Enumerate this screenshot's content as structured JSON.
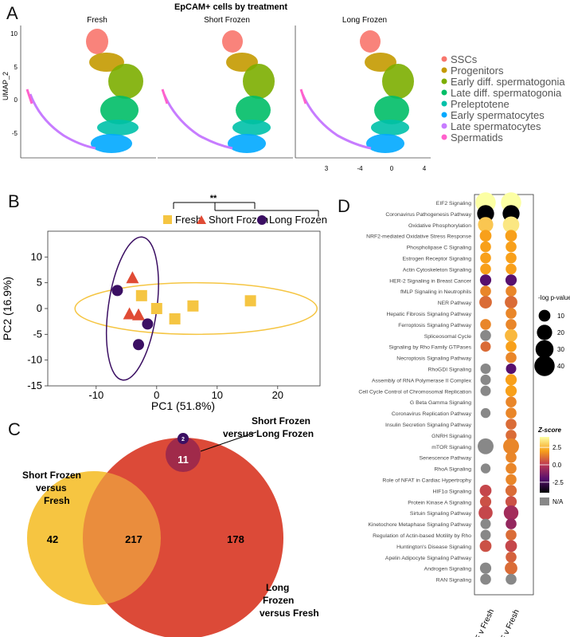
{
  "panels": {
    "a": "A",
    "b": "B",
    "c": "C",
    "d": "D"
  },
  "colors": {
    "ssc": "#f8766d",
    "prog": "#c49a00",
    "early_diff": "#7cae00",
    "late_diff": "#00be67",
    "preleptotene": "#00c1a9",
    "early_sperm": "#00a9ff",
    "late_sperm": "#c77cff",
    "spermatids": "#ff61cc",
    "fresh": "#f5c542",
    "short_frozen": "#e04b35",
    "long_frozen": "#3b0f63"
  },
  "chart_data": [
    {
      "id": "umap",
      "type": "scatter",
      "title": "EpCAM+ cells by treatment",
      "facets": [
        "Fresh",
        "Short Frozen",
        "Long Frozen"
      ],
      "ylabel": "UMAP_2",
      "y_ticks": [
        "10",
        "5",
        "0",
        "-5"
      ],
      "x_ticks_visible": [
        "3",
        "-4",
        "0",
        "4"
      ],
      "legend": [
        "SSCs",
        "Progenitors",
        "Early diff. spermatogonia",
        "Late diff. spermatogonia",
        "Preleptotene",
        "Early spermatocytes",
        "Late spermatocytes",
        "Spermatids"
      ]
    },
    {
      "id": "pca",
      "type": "scatter",
      "xlabel": "PC1 (51.8%)",
      "ylabel": "PC2 (16.9%)",
      "xlim": [
        -18,
        27
      ],
      "ylim": [
        -15,
        15
      ],
      "x_ticks": [
        -10,
        0,
        10,
        20
      ],
      "y_ticks": [
        10,
        5,
        0,
        -5,
        -10,
        -15
      ],
      "significance": "**",
      "legend": [
        "Fresh",
        "Short Frozen",
        "Long Frozen"
      ],
      "series": [
        {
          "name": "Fresh",
          "marker": "square",
          "points": [
            [
              -2.5,
              2.5
            ],
            [
              0,
              0
            ],
            [
              3,
              -2
            ],
            [
              6,
              0.5
            ],
            [
              15.5,
              1.5
            ]
          ]
        },
        {
          "name": "Short Frozen",
          "marker": "triangle",
          "points": [
            [
              -4,
              6
            ],
            [
              -4.5,
              -1
            ],
            [
              -3,
              -1.2
            ]
          ]
        },
        {
          "name": "Long Frozen",
          "marker": "circle",
          "points": [
            [
              -6.5,
              3.5
            ],
            [
              -1.5,
              -3
            ],
            [
              -3,
              -7
            ]
          ]
        }
      ]
    },
    {
      "id": "venn",
      "type": "venn",
      "sets": [
        {
          "name": "Short Frozen versus Fresh",
          "label_lines": [
            "Short Frozen",
            "versus",
            "Fresh"
          ],
          "only": 42
        },
        {
          "name": "Long Frozen versus Fresh",
          "label_lines": [
            "Long",
            "Frozen",
            "versus Fresh"
          ],
          "only": 178
        },
        {
          "name": "Short Frozen versus Long Frozen",
          "label_lines": [
            "Short Frozen",
            "versus Long Frozen"
          ],
          "only": 11
        }
      ],
      "intersections": {
        "sf_lf": 217,
        "small": 2
      }
    },
    {
      "id": "ipa",
      "type": "dot",
      "columns": [
        "SF v Fresh",
        "LF v Fresh"
      ],
      "size_legend_title": "-log p-value",
      "size_legend": [
        10,
        20,
        30,
        40
      ],
      "color_legend_title": "Z-score",
      "color_ticks": [
        2.5,
        0.0,
        -2.5
      ],
      "color_tick_labels": [
        "2.5",
        "0.0",
        "-2.5"
      ],
      "na_label": "N/A",
      "pathways": [
        {
          "name": "EIF2 Signaling",
          "sf": [
            4.0,
            40
          ],
          "lf": [
            4.0,
            40
          ]
        },
        {
          "name": "Coronavirus Pathogenesis Pathway",
          "sf": [
            -4.0,
            26
          ],
          "lf": [
            -4.0,
            26
          ]
        },
        {
          "name": "Oxidative Phosphorylation",
          "sf": [
            2.8,
            20
          ],
          "lf": [
            3.5,
            24
          ]
        },
        {
          "name": "NRF2-mediated Oxidative Stress Response",
          "sf": [
            2.0,
            10
          ],
          "lf": [
            2.0,
            10
          ]
        },
        {
          "name": "Phospholipase C Signaling",
          "sf": [
            2.0,
            8
          ],
          "lf": [
            2.0,
            8
          ]
        },
        {
          "name": "Estrogen Receptor Signaling",
          "sf": [
            2.0,
            8
          ],
          "lf": [
            2.0,
            8
          ]
        },
        {
          "name": "Actin Cytoskeleton Signaling",
          "sf": [
            2.0,
            8
          ],
          "lf": [
            2.0,
            8
          ]
        },
        {
          "name": "HER-2 Signaling in Breast Cancer",
          "sf": [
            -2.0,
            9
          ],
          "lf": [
            -2.0,
            9
          ]
        },
        {
          "name": "fMLP Signaling in Neutrophils",
          "sf": [
            1.5,
            8
          ],
          "lf": [
            1.5,
            8
          ]
        },
        {
          "name": "NER Pathway",
          "sf": [
            1.0,
            12
          ],
          "lf": [
            1.0,
            12
          ]
        },
        {
          "name": "Hepatic Fibrosis Signaling Pathway",
          "sf": null,
          "lf": [
            1.5,
            8
          ]
        },
        {
          "name": "Ferroptosis Signaling Pathway",
          "sf": [
            1.5,
            8
          ],
          "lf": [
            1.5,
            8
          ]
        },
        {
          "name": "Spliceosomal Cycle",
          "sf": [
            "NA",
            8
          ],
          "lf": [
            2.5,
            12
          ]
        },
        {
          "name": "Signaling by Rho Family GTPases",
          "sf": [
            1.0,
            7
          ],
          "lf": [
            2.0,
            8
          ]
        },
        {
          "name": "Necroptosis Signaling Pathway",
          "sf": null,
          "lf": [
            1.5,
            8
          ]
        },
        {
          "name": "RhoGDI Signaling",
          "sf": [
            "NA",
            7
          ],
          "lf": [
            -2.0,
            7
          ]
        },
        {
          "name": "Assembly of RNA Polymerase II Complex",
          "sf": [
            "NA",
            7
          ],
          "lf": [
            2.0,
            9
          ]
        },
        {
          "name": "Cell Cycle Control of Chromosomal Replication",
          "sf": [
            "NA",
            7
          ],
          "lf": [
            2.0,
            9
          ]
        },
        {
          "name": "G Beta Gamma Signaling",
          "sf": null,
          "lf": [
            1.5,
            8
          ]
        },
        {
          "name": "Coronavirus Replication Pathway",
          "sf": [
            "NA",
            6
          ],
          "lf": [
            1.5,
            8
          ]
        },
        {
          "name": "Insulin Secretion Signaling Pathway",
          "sf": null,
          "lf": [
            1.0,
            8
          ]
        },
        {
          "name": "GNRH Signaling",
          "sf": null,
          "lf": [
            1.0,
            8
          ]
        },
        {
          "name": "mTOR Signaling",
          "sf": [
            "NA",
            22
          ],
          "lf": [
            1.5,
            22
          ]
        },
        {
          "name": "Senescence Pathway",
          "sf": null,
          "lf": [
            1.5,
            8
          ]
        },
        {
          "name": "RhoA Signaling",
          "sf": [
            "NA",
            6
          ],
          "lf": [
            1.5,
            8
          ]
        },
        {
          "name": "Role of NFAT in Cardiac Hypertrophy",
          "sf": null,
          "lf": [
            1.5,
            8
          ]
        },
        {
          "name": "HIF1α Signaling",
          "sf": [
            0.3,
            10
          ],
          "lf": [
            1.0,
            9
          ]
        },
        {
          "name": "Protein Kinase A Signaling",
          "sf": [
            0.5,
            9
          ],
          "lf": [
            0.5,
            9
          ]
        },
        {
          "name": "Sirtuin Signaling Pathway",
          "sf": [
            0.3,
            16
          ],
          "lf": [
            -0.5,
            18
          ]
        },
        {
          "name": "Kinetochore Metaphase Signaling Pathway",
          "sf": [
            "NA",
            7
          ],
          "lf": [
            -0.8,
            8
          ]
        },
        {
          "name": "Regulation of Actin-based Motility by Rho",
          "sf": [
            "NA",
            7
          ],
          "lf": [
            1.0,
            8
          ]
        },
        {
          "name": "Huntington's Disease Signaling",
          "sf": [
            0.5,
            10
          ],
          "lf": [
            0.3,
            10
          ]
        },
        {
          "name": "Apelin Adipocyte Signaling Pathway",
          "sf": null,
          "lf": [
            0.8,
            8
          ]
        },
        {
          "name": "Androgen Signaling",
          "sf": [
            "NA",
            9
          ],
          "lf": [
            1.0,
            12
          ]
        },
        {
          "name": "RAN Signaling",
          "sf": [
            "NA",
            8
          ],
          "lf": [
            "NA",
            8
          ]
        }
      ]
    }
  ]
}
